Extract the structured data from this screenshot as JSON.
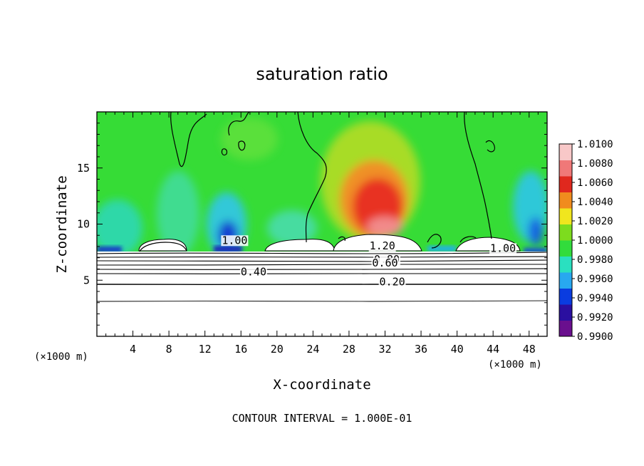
{
  "chart_data": {
    "type": "heatmap",
    "title": "saturation ratio",
    "xlabel": "X-coordinate",
    "ylabel": "Z-coordinate",
    "x_unit": "(×1000 m)",
    "z_unit": "(×1000 m)",
    "xlim": [
      0,
      50
    ],
    "ylim": [
      0,
      20
    ],
    "x_ticks": [
      "4",
      "8",
      "12",
      "16",
      "20",
      "24",
      "28",
      "32",
      "36",
      "40",
      "44",
      "48"
    ],
    "y_ticks": [
      "5",
      "10",
      "15"
    ],
    "colorbar": {
      "range": [
        0.99,
        1.01
      ],
      "ticks": [
        "0.9900",
        "0.9920",
        "0.9940",
        "0.9960",
        "0.9980",
        "1.0000",
        "1.0020",
        "1.0040",
        "1.0060",
        "1.0080",
        "1.0100"
      ],
      "colors": [
        "#6a0f8e",
        "#2a0fa0",
        "#0a3ce0",
        "#28a8f0",
        "#2ae0c0",
        "#32dc3c",
        "#7ddc1e",
        "#f0e61e",
        "#f08c1e",
        "#e0281e",
        "#f07878",
        "#f8c8c8"
      ]
    },
    "contour_labels": [
      {
        "text": "1.00",
        "x": 15.3,
        "z": 8.3
      },
      {
        "text": "1.00",
        "x": 45.1,
        "z": 7.6
      },
      {
        "text": "1.20",
        "x": 31.7,
        "z": 7.8
      },
      {
        "text": "0.80",
        "x": 32.2,
        "z": 6.6
      },
      {
        "text": "0.60",
        "x": 32.0,
        "z": 6.3
      },
      {
        "text": "0.40",
        "x": 17.4,
        "z": 5.5
      },
      {
        "text": "0.20",
        "x": 32.8,
        "z": 4.6
      }
    ],
    "contour_interval_text": "CONTOUR INTERVAL = 1.000E-01"
  }
}
